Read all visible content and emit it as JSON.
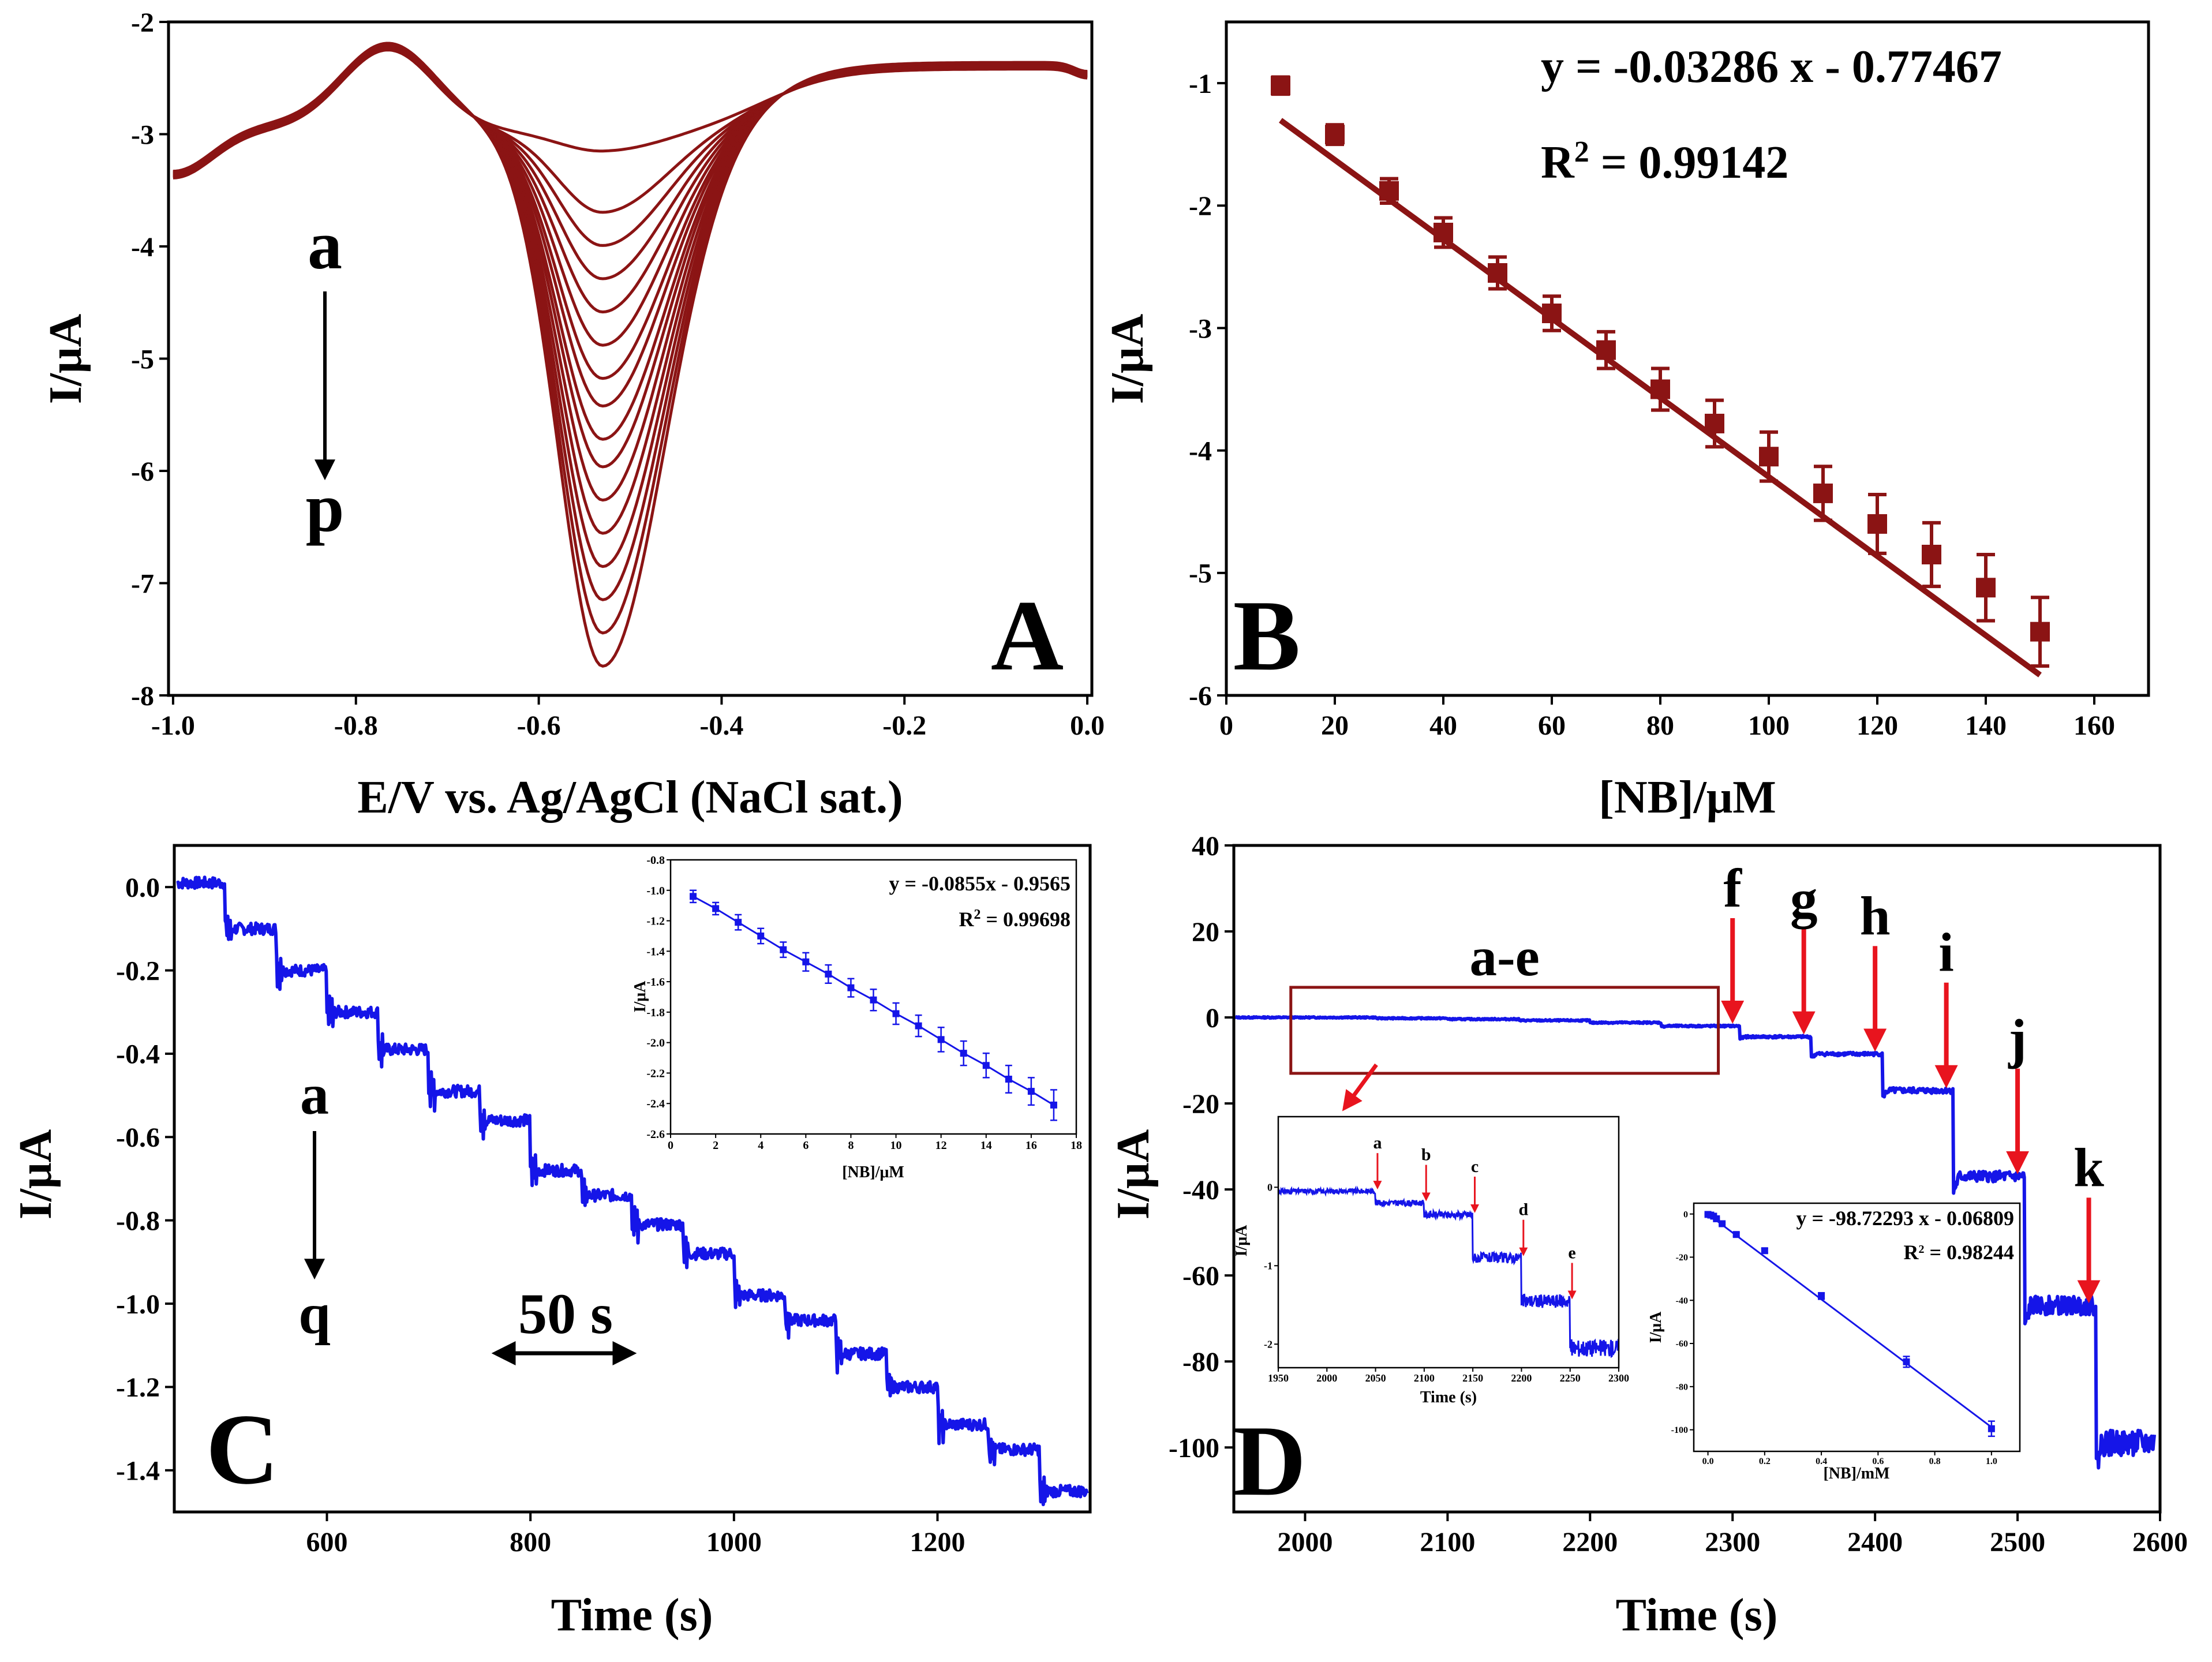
{
  "colors": {
    "dark_red": "#8B1414",
    "blue": "#1515E8",
    "arrow_red": "#E8141E",
    "black": "#000000"
  },
  "chart_data": [
    {
      "panel": "A",
      "type": "line",
      "panel_letter": "A",
      "xlabel": "E/V vs. Ag/AgCl (NaCl sat.)",
      "ylabel": "I/μA",
      "xlim": [
        -1.0,
        0.0
      ],
      "ylim": [
        -8,
        -2
      ],
      "x_ticks": [
        -1.0,
        -0.8,
        -0.6,
        -0.4,
        -0.2,
        0.0
      ],
      "x_tick_labels": [
        "-1.0",
        "-0.8",
        "-0.6",
        "-0.4",
        "-0.2",
        "0.0"
      ],
      "y_ticks": [
        -2,
        -3,
        -4,
        -5,
        -6,
        -7,
        -8
      ],
      "y_tick_labels": [
        "-2",
        "-3",
        "-4",
        "-5",
        "-6",
        "-7",
        "-8"
      ],
      "series_count": 16,
      "series_labels_first_last": [
        "a",
        "p"
      ],
      "peak_potential": -0.53,
      "peak_currents": [
        -3.15,
        -3.7,
        -4.0,
        -4.3,
        -4.6,
        -4.9,
        -5.2,
        -5.45,
        -5.75,
        -6.0,
        -6.3,
        -6.6,
        -6.9,
        -7.2,
        -7.5,
        -7.8
      ],
      "label_a": "a",
      "label_p": "p"
    },
    {
      "panel": "B",
      "type": "scatter",
      "panel_letter": "B",
      "xlabel": "[NB]/μM",
      "ylabel": "I/μA",
      "xlim": [
        0,
        170
      ],
      "ylim": [
        -6,
        -0.5
      ],
      "x_ticks": [
        0,
        20,
        40,
        60,
        80,
        100,
        120,
        140,
        160
      ],
      "x_tick_labels": [
        "0",
        "20",
        "40",
        "60",
        "80",
        "100",
        "120",
        "140",
        "160"
      ],
      "y_ticks": [
        -1,
        -2,
        -3,
        -4,
        -5,
        -6
      ],
      "y_tick_labels": [
        "-1",
        "-2",
        "-3",
        "-4",
        "-5",
        "-6"
      ],
      "x": [
        10,
        20,
        30,
        40,
        50,
        60,
        70,
        80,
        90,
        100,
        110,
        120,
        130,
        140,
        150
      ],
      "y": [
        -1.02,
        -1.42,
        -1.88,
        -2.22,
        -2.55,
        -2.88,
        -3.18,
        -3.5,
        -3.78,
        -4.05,
        -4.35,
        -4.6,
        -4.85,
        -5.12,
        -5.48
      ],
      "err": [
        0.07,
        0.08,
        0.1,
        0.12,
        0.13,
        0.14,
        0.15,
        0.17,
        0.19,
        0.2,
        0.22,
        0.24,
        0.26,
        0.27,
        0.28
      ],
      "fit": {
        "slope": -0.03286,
        "intercept": -0.77467
      },
      "equation": "y = -0.03286 x - 0.77467",
      "r2_prefix": "R",
      "r2_sup": "2",
      "r2_value": " = 0.99142"
    },
    {
      "panel": "C",
      "type": "line",
      "panel_letter": "C",
      "xlabel": "Time (s)",
      "ylabel": "I/μA",
      "xlim": [
        450,
        1350
      ],
      "ylim": [
        -1.5,
        0.1
      ],
      "x_ticks": [
        600,
        800,
        1000,
        1200
      ],
      "x_tick_labels": [
        "600",
        "800",
        "1000",
        "1200"
      ],
      "y_ticks": [
        0.0,
        -0.2,
        -0.4,
        -0.6,
        -0.8,
        -1.0,
        -1.2,
        -1.4
      ],
      "y_tick_labels": [
        "0.0",
        "-0.2",
        "-0.4",
        "-0.6",
        "-0.8",
        "-1.0",
        "-1.2",
        "-1.4"
      ],
      "step_times": [
        500,
        550,
        600,
        650,
        700,
        750,
        800,
        850,
        900,
        950,
        1000,
        1050,
        1100,
        1150,
        1200,
        1250,
        1300
      ],
      "step_levels": [
        0.01,
        -0.1,
        -0.2,
        -0.3,
        -0.39,
        -0.49,
        -0.56,
        -0.68,
        -0.74,
        -0.81,
        -0.88,
        -0.98,
        -1.04,
        -1.12,
        -1.2,
        -1.29,
        -1.35,
        -1.45
      ],
      "label_a": "a",
      "label_q": "q",
      "scale_label": "50 s",
      "inset": {
        "type": "scatter",
        "xlabel": "[NB]/μM",
        "ylabel": "I/μA",
        "xlim": [
          0,
          18
        ],
        "ylim": [
          -2.6,
          -0.8
        ],
        "x_ticks": [
          0,
          2,
          4,
          6,
          8,
          10,
          12,
          14,
          16,
          18
        ],
        "x_tick_labels": [
          "0",
          "2",
          "4",
          "6",
          "8",
          "10",
          "12",
          "14",
          "16",
          "18"
        ],
        "y_ticks": [
          -0.8,
          -1.0,
          -1.2,
          -1.4,
          -1.6,
          -1.8,
          -2.0,
          -2.2,
          -2.4,
          -2.6
        ],
        "y_tick_labels": [
          "-0.8",
          "-1.0",
          "-1.2",
          "-1.4",
          "-1.6",
          "-1.8",
          "-2.0",
          "-2.2",
          "-2.4",
          "-2.6"
        ],
        "x": [
          1,
          2,
          3,
          4,
          5,
          6,
          7,
          8,
          9,
          10,
          11,
          12,
          13,
          14,
          15,
          16,
          17
        ],
        "y": [
          -1.04,
          -1.12,
          -1.21,
          -1.3,
          -1.39,
          -1.47,
          -1.55,
          -1.64,
          -1.72,
          -1.81,
          -1.89,
          -1.98,
          -2.07,
          -2.15,
          -2.24,
          -2.32,
          -2.41
        ],
        "err": [
          0.04,
          0.04,
          0.05,
          0.05,
          0.05,
          0.06,
          0.06,
          0.06,
          0.07,
          0.07,
          0.07,
          0.08,
          0.08,
          0.08,
          0.09,
          0.09,
          0.1
        ],
        "fit": {
          "slope": -0.0855,
          "intercept": -0.9565
        },
        "equation": "y = -0.0855x - 0.9565",
        "r2_prefix": "R",
        "r2_sup": "2",
        "r2_value": " = 0.99698"
      }
    },
    {
      "panel": "D",
      "type": "line",
      "panel_letter": "D",
      "xlabel": "Time (s)",
      "ylabel": "I/μA",
      "xlim": [
        1950,
        2600
      ],
      "ylim": [
        -115,
        40
      ],
      "x_ticks": [
        2000,
        2100,
        2200,
        2300,
        2400,
        2500,
        2600
      ],
      "x_tick_labels": [
        "2000",
        "2100",
        "2200",
        "2300",
        "2400",
        "2500",
        "2600"
      ],
      "y_ticks": [
        40,
        20,
        0,
        -20,
        -40,
        -60,
        -80,
        -100
      ],
      "y_tick_labels": [
        "40",
        "20",
        "0",
        "-20",
        "-40",
        "-60",
        "-80",
        "-100"
      ],
      "step_times": [
        2050,
        2100,
        2150,
        2200,
        2250,
        2305,
        2355,
        2405,
        2455,
        2505,
        2555
      ],
      "step_levels": [
        0,
        -0.2,
        -0.4,
        -0.7,
        -1.2,
        -2,
        -4.5,
        -8.5,
        -17,
        -37,
        -67,
        -99
      ],
      "markers": [
        "f",
        "g",
        "h",
        "i",
        "j",
        "k"
      ],
      "marker_times": [
        2305,
        2355,
        2405,
        2455,
        2505,
        2555
      ],
      "box_label": "a-e",
      "box_range": {
        "x": [
          1990,
          2290
        ],
        "y": [
          -13,
          7
        ]
      },
      "inset1": {
        "type": "line",
        "xlabel": "Time (s)",
        "ylabel": "I/μA",
        "xlim": [
          1950,
          2300
        ],
        "ylim": [
          -2.3,
          0.9
        ],
        "x_ticks": [
          1950,
          2000,
          2050,
          2100,
          2150,
          2200,
          2250,
          2300
        ],
        "x_tick_labels": [
          "1950",
          "2000",
          "2050",
          "2100",
          "2150",
          "2200",
          "2250",
          "2300"
        ],
        "y_ticks": [
          0,
          -1,
          -2
        ],
        "y_tick_labels": [
          "0",
          "-1",
          "-2"
        ],
        "step_times": [
          2050,
          2100,
          2150,
          2200,
          2250
        ],
        "step_levels": [
          -0.05,
          -0.2,
          -0.35,
          -0.9,
          -1.45,
          -2.05
        ],
        "markers": [
          "a",
          "b",
          "c",
          "d",
          "e"
        ]
      },
      "inset2": {
        "type": "scatter",
        "xlabel": "[NB]/mM",
        "ylabel": "I/μA",
        "xlim": [
          -0.05,
          1.1
        ],
        "ylim": [
          -110,
          5
        ],
        "x_ticks": [
          0.0,
          0.2,
          0.4,
          0.6,
          0.8,
          1.0
        ],
        "x_tick_labels": [
          "0.0",
          "0.2",
          "0.4",
          "0.6",
          "0.8",
          "1.0"
        ],
        "y_ticks": [
          0,
          -20,
          -40,
          -60,
          -80,
          -100
        ],
        "y_tick_labels": [
          "0",
          "-20",
          "-40",
          "-60",
          "-80",
          "-100"
        ],
        "x": [
          0.0,
          0.01,
          0.02,
          0.03,
          0.05,
          0.1,
          0.2,
          0.4,
          0.7,
          1.0
        ],
        "y": [
          -0.2,
          -0.5,
          -1.0,
          -2.2,
          -4.5,
          -9.5,
          -17.0,
          -38.0,
          -68.5,
          -99.5
        ],
        "err": [
          0.3,
          0.3,
          0.3,
          0.4,
          0.5,
          0.8,
          1.0,
          1.5,
          2.5,
          3.5
        ],
        "fit": {
          "slope": -98.72293,
          "intercept": -0.06809
        },
        "equation": "y = -98.72293 x - 0.06809",
        "r2_prefix": "R",
        "r2_sup": "2",
        "r2_value": " = 0.98244"
      }
    }
  ]
}
